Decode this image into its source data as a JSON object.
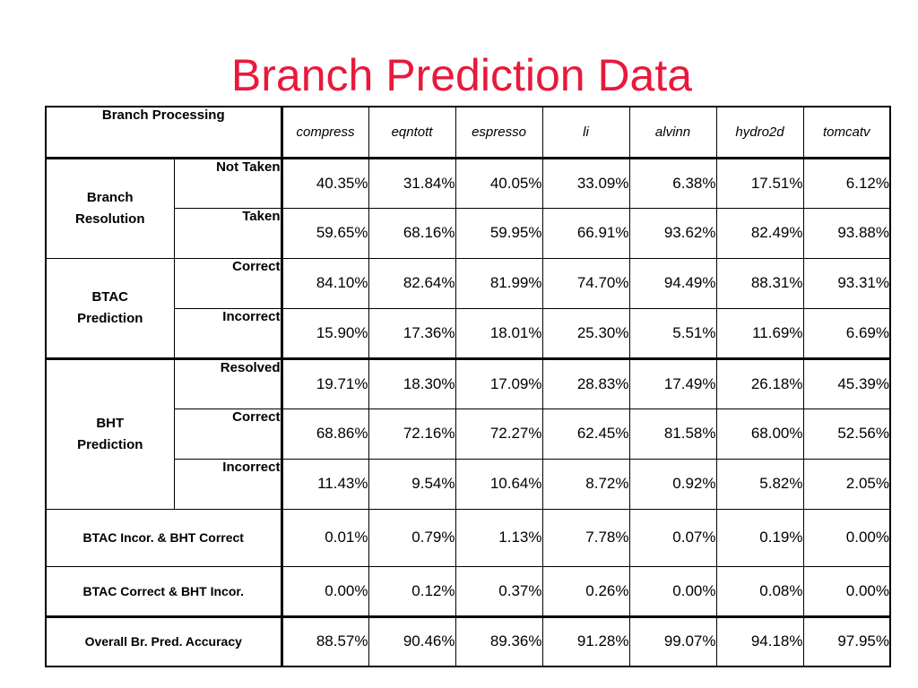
{
  "title": "Branch Prediction Data",
  "colors": {
    "title": "#e8193c",
    "text": "#000000"
  },
  "table": {
    "corner_label": "Branch Processing",
    "benchmarks": [
      "compress",
      "eqntott",
      "espresso",
      "li",
      "alvinn",
      "hydro2d",
      "tomcatv"
    ],
    "groups": {
      "branch_resolution": {
        "label_line1": "Branch",
        "label_line2": "Resolution",
        "rows": [
          {
            "label": "Not Taken",
            "values": [
              "40.35%",
              "31.84%",
              "40.05%",
              "33.09%",
              "6.38%",
              "17.51%",
              "6.12%"
            ]
          },
          {
            "label": "Taken",
            "values": [
              "59.65%",
              "68.16%",
              "59.95%",
              "66.91%",
              "93.62%",
              "82.49%",
              "93.88%"
            ]
          }
        ]
      },
      "btac_prediction": {
        "label_line1": "BTAC",
        "label_line2": "Prediction",
        "rows": [
          {
            "label": "Correct",
            "values": [
              "84.10%",
              "82.64%",
              "81.99%",
              "74.70%",
              "94.49%",
              "88.31%",
              "93.31%"
            ]
          },
          {
            "label": "Incorrect",
            "values": [
              "15.90%",
              "17.36%",
              "18.01%",
              "25.30%",
              "5.51%",
              "11.69%",
              "6.69%"
            ]
          }
        ]
      },
      "bht_prediction": {
        "label_line1": "BHT",
        "label_line2": "Prediction",
        "rows": [
          {
            "label": "Resolved",
            "values": [
              "19.71%",
              "18.30%",
              "17.09%",
              "28.83%",
              "17.49%",
              "26.18%",
              "45.39%"
            ]
          },
          {
            "label": "Correct",
            "values": [
              "68.86%",
              "72.16%",
              "72.27%",
              "62.45%",
              "81.58%",
              "68.00%",
              "52.56%"
            ]
          },
          {
            "label": "Incorrect",
            "values": [
              "11.43%",
              "9.54%",
              "10.64%",
              "8.72%",
              "0.92%",
              "5.82%",
              "2.05%"
            ]
          }
        ]
      }
    },
    "summary_rows": [
      {
        "label": "BTAC Incor. & BHT Correct",
        "values": [
          "0.01%",
          "0.79%",
          "1.13%",
          "7.78%",
          "0.07%",
          "0.19%",
          "0.00%"
        ]
      },
      {
        "label": "BTAC Correct & BHT Incor.",
        "values": [
          "0.00%",
          "0.12%",
          "0.37%",
          "0.26%",
          "0.00%",
          "0.08%",
          "0.00%"
        ]
      },
      {
        "label": "Overall Br. Pred. Accuracy",
        "values": [
          "88.57%",
          "90.46%",
          "89.36%",
          "91.28%",
          "99.07%",
          "94.18%",
          "97.95%"
        ]
      }
    ]
  }
}
